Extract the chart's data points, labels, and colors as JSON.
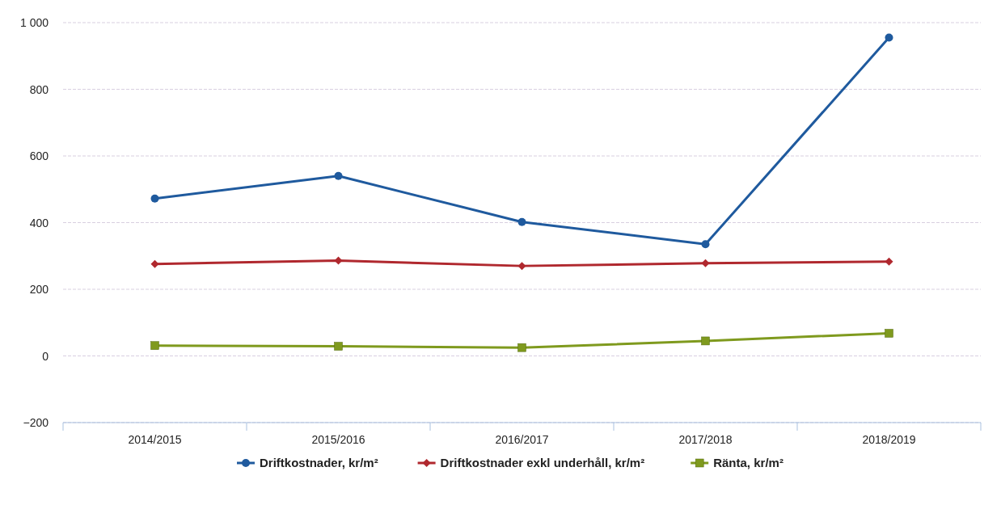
{
  "chart_data": {
    "type": "line",
    "categories": [
      "2014/2015",
      "2015/2016",
      "2016/2017",
      "2017/2018",
      "2018/2019"
    ],
    "series": [
      {
        "name": "Driftkostnader, kr/m²",
        "color": "#1f5a9e",
        "marker": "circle",
        "values": [
          472,
          540,
          402,
          335,
          955
        ]
      },
      {
        "name": "Driftkostnader exkl underhåll, kr/m²",
        "color": "#b0282e",
        "marker": "diamond",
        "values": [
          276,
          286,
          270,
          278,
          283
        ]
      },
      {
        "name": "Ränta, kr/m²",
        "color": "#7f9a1e",
        "marker": "square",
        "values": [
          31,
          29,
          25,
          45,
          68
        ]
      }
    ],
    "ylim": [
      -200,
      1000
    ],
    "yticks": [
      {
        "value": -200,
        "label": "−200"
      },
      0,
      200,
      400,
      600,
      800,
      {
        "value": 1000,
        "label": "1 000"
      }
    ],
    "grid": "y",
    "legend": "bottom"
  }
}
